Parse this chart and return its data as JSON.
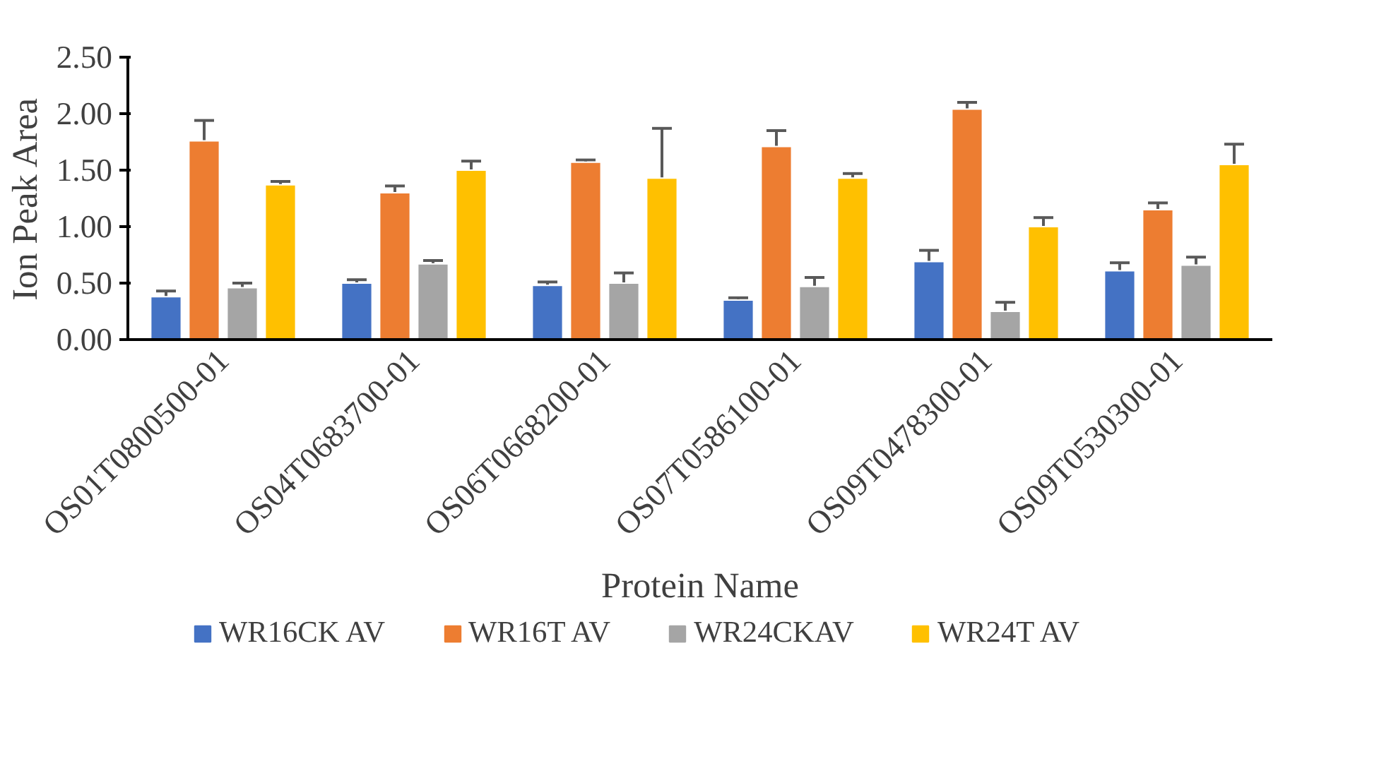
{
  "chart_data": {
    "type": "bar",
    "xlabel": "Protein Name",
    "ylabel": "Ion Peak Area",
    "categories": [
      "OS01T0800500-01",
      "OS04T0683700-01",
      "OS06T0668200-01",
      "OS07T0586100-01",
      "OS09T0478300-01",
      "OS09T0530300-01"
    ],
    "series": [
      {
        "name": "WR16CK AV",
        "color": "#4472c4",
        "values": [
          0.38,
          0.5,
          0.48,
          0.35,
          0.69,
          0.61
        ],
        "errors": [
          [
            0.38,
            0.43
          ],
          [
            0.5,
            0.53
          ],
          [
            0.48,
            0.51
          ],
          [
            0.35,
            0.37
          ],
          [
            0.69,
            0.79
          ],
          [
            0.61,
            0.68
          ]
        ]
      },
      {
        "name": "WR16T AV",
        "color": "#ed7d31",
        "values": [
          1.76,
          1.3,
          1.57,
          1.71,
          2.04,
          1.15
        ],
        "errors": [
          [
            1.76,
            1.94
          ],
          [
            1.3,
            1.36
          ],
          [
            1.57,
            1.59
          ],
          [
            1.71,
            1.85
          ],
          [
            2.04,
            2.1
          ],
          [
            1.15,
            1.21
          ]
        ]
      },
      {
        "name": "WR24CKAV",
        "color": "#a5a5a5",
        "values": [
          0.46,
          0.67,
          0.5,
          0.47,
          0.25,
          0.66
        ],
        "errors": [
          [
            0.46,
            0.5
          ],
          [
            0.67,
            0.7
          ],
          [
            0.5,
            0.59
          ],
          [
            0.47,
            0.55
          ],
          [
            0.25,
            0.33
          ],
          [
            0.66,
            0.73
          ]
        ]
      },
      {
        "name": "WR24T AV",
        "color": "#ffc000",
        "values": [
          1.37,
          1.5,
          1.43,
          1.43,
          1.0,
          1.55
        ],
        "errors": [
          [
            1.37,
            1.4
          ],
          [
            1.5,
            1.58
          ],
          [
            1.43,
            1.87
          ],
          [
            1.43,
            1.47
          ],
          [
            1.0,
            1.08
          ],
          [
            1.55,
            1.73
          ]
        ]
      }
    ],
    "ylim": [
      0,
      2.5
    ],
    "yticks": [
      {
        "value": 0,
        "label": "0.00"
      },
      {
        "value": 0.5,
        "label": "0.50"
      },
      {
        "value": 1,
        "label": "1.00"
      },
      {
        "value": 1.5,
        "label": "1.50"
      },
      {
        "value": 2,
        "label": "2.00"
      },
      {
        "value": 2.5,
        "label": "2.50"
      }
    ],
    "grid": false,
    "legend": "bottom"
  }
}
